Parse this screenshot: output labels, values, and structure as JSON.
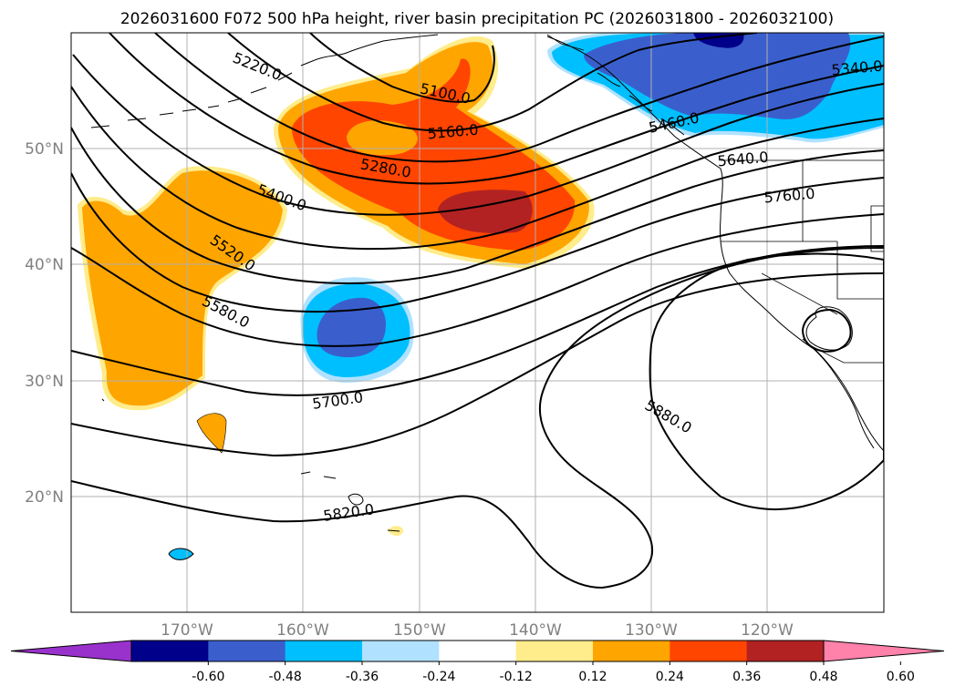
{
  "figure": {
    "title": "2026031600 F072 500 hPa height, river basin precipitation PC (2026031800 - 2026032100)"
  },
  "map": {
    "lat_labels": [
      "50°N",
      "40°N",
      "30°N",
      "20°N"
    ],
    "lon_labels": [
      "170°W",
      "160°W",
      "150°W",
      "140°W",
      "130°W",
      "120°W"
    ],
    "contour_labels": [
      "5220.0",
      "5100.0",
      "5160.0",
      "5280.0",
      "5400.0",
      "5520.0",
      "5580.0",
      "5700.0",
      "5820.0",
      "5880.0",
      "5760.0",
      "5340.0",
      "5640.0",
      "5460.0"
    ]
  },
  "colorbar": {
    "tick_labels": [
      "-0.60",
      "-0.48",
      "-0.36",
      "-0.24",
      "-0.12",
      "0.12",
      "0.24",
      "0.36",
      "0.48",
      "0.60"
    ],
    "colors": [
      "#9932cc",
      "#00008b",
      "#3a5fcd",
      "#00bfff",
      "#b0e2ff",
      "#ffffff",
      "#ffec8b",
      "#ffa500",
      "#ff4500",
      "#b22222",
      "#ff82ab"
    ],
    "extend": "both"
  },
  "chart_data": {
    "type": "map",
    "projection": "PlateCarree",
    "extent_lon": [
      -180,
      -110
    ],
    "extent_lat": [
      10,
      60
    ],
    "contour_field": "500 hPa geopotential height",
    "contour_units": "m",
    "contour_levels_labeled": [
      5100,
      5160,
      5220,
      5280,
      5340,
      5400,
      5460,
      5520,
      5580,
      5640,
      5700,
      5760,
      5820,
      5880
    ],
    "fill_field": "river basin precipitation PC",
    "fill_levels": [
      -0.6,
      -0.48,
      -0.36,
      -0.24,
      -0.12,
      0.12,
      0.24,
      0.36,
      0.48,
      0.6
    ],
    "colormap": [
      "#9932cc",
      "#00008b",
      "#3a5fcd",
      "#00bfff",
      "#b0e2ff",
      "#ffffff",
      "#ffec8b",
      "#ffa500",
      "#ff4500",
      "#b22222",
      "#ff82ab"
    ],
    "gridlines": true
  }
}
